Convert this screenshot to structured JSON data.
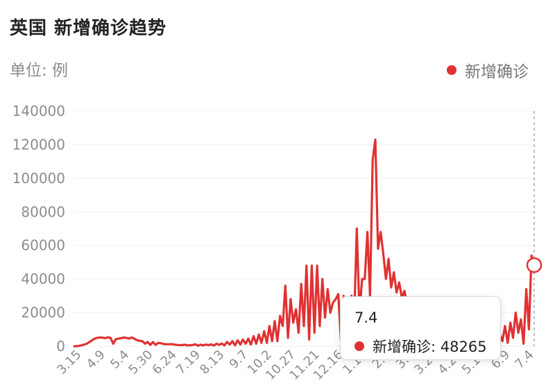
{
  "title": "英国 新增确诊趋势",
  "unit_label": "单位: 例",
  "colors": {
    "series": "#e03131",
    "axis_text": "#8c8c8c",
    "grid": "#f0f0f0"
  },
  "tooltip": {
    "date": "7.4",
    "series_name": "新增确诊",
    "value": "48265",
    "label": "新增确诊: 48265"
  },
  "chart_data": {
    "type": "line",
    "xlabel": "",
    "ylabel": "",
    "ylim": [
      0,
      140000
    ],
    "yticks": [
      0,
      20000,
      40000,
      60000,
      80000,
      100000,
      120000,
      140000
    ],
    "ytick_labels": [
      "0",
      "20000",
      "40000",
      "60000",
      "80000",
      "100000",
      "120000",
      "140000"
    ],
    "xtick_labels": [
      "3.15",
      "4.9",
      "5.4",
      "5.30",
      "6.24",
      "7.19",
      "8.13",
      "9.7",
      "10.2",
      "10.27",
      "11.21",
      "12.16",
      "1.10",
      "2.4",
      "3.1",
      "3.26",
      "4.20",
      "5.15",
      "6.9",
      "7.4"
    ],
    "legend": {
      "position": "top-right"
    },
    "grid": true,
    "series": [
      {
        "name": "新增确诊",
        "values": [
          0,
          0,
          200,
          500,
          1000,
          1500,
          2500,
          3500,
          4500,
          5000,
          5200,
          5100,
          4800,
          5300,
          5000,
          1500,
          4200,
          4500,
          4800,
          5200,
          4900,
          4600,
          5200,
          4400,
          3600,
          3200,
          3000,
          1500,
          2500,
          800,
          2500,
          800,
          2000,
          1800,
          1300,
          1200,
          1100,
          1300,
          1000,
          800,
          700,
          600,
          900,
          500,
          600,
          700,
          1200,
          300,
          900,
          500,
          1000,
          600,
          1100,
          400,
          1500,
          800,
          1600,
          500,
          2500,
          1000,
          3000,
          500,
          3500,
          1000,
          4000,
          1500,
          4500,
          1000,
          6000,
          1500,
          7000,
          2000,
          9000,
          2000,
          12000,
          3000,
          15000,
          3000,
          18000,
          12000,
          36000,
          5000,
          28000,
          14000,
          22000,
          8000,
          37000,
          12000,
          48000,
          4000,
          48000,
          8000,
          48000,
          12000,
          40000,
          17000,
          34000,
          20000,
          26000,
          28000,
          31000,
          4000,
          30000,
          1500,
          2000,
          30000,
          16000,
          70000,
          20000,
          40000,
          40000,
          68000,
          30000,
          111000,
          123000,
          58000,
          68000,
          55000,
          40000,
          52000,
          35000,
          44000,
          32000,
          38000,
          29000,
          33000,
          24000,
          23000,
          3000,
          7000,
          4000,
          6000,
          5000,
          8000,
          4000,
          6000,
          3000,
          5000,
          2500,
          6000,
          3000,
          5000,
          2000,
          4500,
          3500,
          6000,
          2500,
          5000,
          1500,
          4000,
          1000,
          5000,
          2000,
          6000,
          2500,
          7000,
          1500,
          4000,
          1000,
          5000,
          2500,
          7000,
          3000,
          12000,
          2000,
          14000,
          5000,
          20000,
          8000,
          16000,
          1500,
          34000,
          10000,
          54000,
          48265
        ]
      }
    ]
  }
}
